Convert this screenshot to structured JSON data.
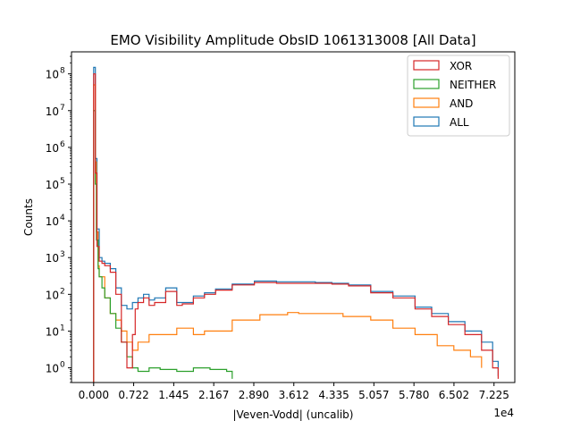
{
  "chart_data": {
    "type": "line",
    "title": "EMO Visibility Amplitude ObsID 1061313008 [All Data]",
    "xlabel": "|Veven-Vodd| (uncalib)",
    "ylabel": "Counts",
    "x_offset_text": "1e4",
    "xlim": [
      -0.4,
      7.6
    ],
    "ylim_log10": [
      -0.4,
      8.6
    ],
    "yscale": "log",
    "x_ticks": [
      0.0,
      0.722,
      1.445,
      2.167,
      2.89,
      3.612,
      4.335,
      5.057,
      5.78,
      6.502,
      7.225
    ],
    "x_tick_labels": [
      "0.000",
      "0.722",
      "1.445",
      "2.167",
      "2.890",
      "3.612",
      "4.335",
      "5.057",
      "5.780",
      "6.502",
      "7.225"
    ],
    "y_tick_exponents": [
      0,
      1,
      2,
      3,
      4,
      5,
      6,
      7,
      8
    ],
    "y_tick_labels": [
      "10",
      "10",
      "10",
      "10",
      "10",
      "10",
      "10",
      "10",
      "10"
    ],
    "legend_position": "top-right",
    "series": [
      {
        "name": "XOR",
        "color": "#d62728",
        "x": [
          0.0,
          0.03,
          0.06,
          0.1,
          0.15,
          0.2,
          0.3,
          0.4,
          0.5,
          0.6,
          0.7,
          0.75,
          0.8,
          0.9,
          1.0,
          1.1,
          1.3,
          1.5,
          1.6,
          1.8,
          2.0,
          2.2,
          2.5,
          2.9,
          3.3,
          3.6,
          4.0,
          4.3,
          4.6,
          5.0,
          5.4,
          5.8,
          6.1,
          6.4,
          6.7,
          7.0,
          7.2,
          7.3
        ],
        "values": [
          100000000.0,
          200000.0,
          2000.0,
          800.0,
          700.0,
          600.0,
          400.0,
          100.0,
          5.0,
          1.0,
          8.0,
          40.0,
          60.0,
          80.0,
          50.0,
          60.0,
          120.0,
          50.0,
          55.0,
          80.0,
          100.0,
          130.0,
          180.0,
          210.0,
          200.0,
          200.0,
          200.0,
          190.0,
          170.0,
          110.0,
          80.0,
          40.0,
          25.0,
          15.0,
          8.0,
          3.0,
          1.0,
          0.5
        ]
      },
      {
        "name": "NEITHER",
        "color": "#2ca02c",
        "x": [
          0.0,
          0.03,
          0.05,
          0.08,
          0.1,
          0.15,
          0.2,
          0.3,
          0.4,
          0.5,
          0.6,
          0.7,
          0.8,
          1.0,
          1.2,
          1.5,
          1.8,
          2.1,
          2.4,
          2.5
        ],
        "values": [
          10000000.0,
          100000.0,
          3000.0,
          500.0,
          300.0,
          150.0,
          80.0,
          30.0,
          12.0,
          5.0,
          2.0,
          1.0,
          0.8,
          1.0,
          0.9,
          0.8,
          1.0,
          0.9,
          0.8,
          0.5
        ]
      },
      {
        "name": "AND",
        "color": "#ff7f0e",
        "x": [
          0.0,
          0.03,
          0.05,
          0.08,
          0.1,
          0.2,
          0.3,
          0.4,
          0.5,
          0.6,
          0.7,
          0.8,
          1.0,
          1.2,
          1.5,
          1.8,
          2.0,
          2.5,
          3.0,
          3.5,
          3.7,
          4.0,
          4.5,
          5.0,
          5.4,
          5.8,
          6.2,
          6.5,
          6.8,
          7.0
        ],
        "values": [
          50000000.0,
          400000.0,
          5000.0,
          600.0,
          300.0,
          80.0,
          30.0,
          20.0,
          10.0,
          5.0,
          3.0,
          5.0,
          8.0,
          8.0,
          12.0,
          8.0,
          10.0,
          20.0,
          28.0,
          32.0,
          30.0,
          30.0,
          25.0,
          20.0,
          12.0,
          8.0,
          4.0,
          3.0,
          2.0,
          1.0
        ]
      },
      {
        "name": "ALL",
        "color": "#1f77b4",
        "x": [
          0.0,
          0.03,
          0.06,
          0.1,
          0.15,
          0.2,
          0.3,
          0.4,
          0.5,
          0.6,
          0.7,
          0.8,
          0.9,
          1.0,
          1.1,
          1.3,
          1.5,
          1.6,
          1.8,
          2.0,
          2.2,
          2.5,
          2.9,
          3.3,
          3.6,
          4.0,
          4.3,
          4.6,
          5.0,
          5.4,
          5.8,
          6.1,
          6.4,
          6.7,
          7.0,
          7.2,
          7.3
        ],
        "values": [
          150000000.0,
          500000.0,
          6000.0,
          1000.0,
          800.0,
          700.0,
          500.0,
          150.0,
          50.0,
          40.0,
          60.0,
          80.0,
          100.0,
          70.0,
          80.0,
          150.0,
          60.0,
          60.0,
          90.0,
          110.0,
          140.0,
          190.0,
          230.0,
          220.0,
          220.0,
          210.0,
          200.0,
          180.0,
          120.0,
          90.0,
          45.0,
          30.0,
          18.0,
          10.0,
          5.0,
          1.5,
          0.6
        ]
      }
    ]
  }
}
